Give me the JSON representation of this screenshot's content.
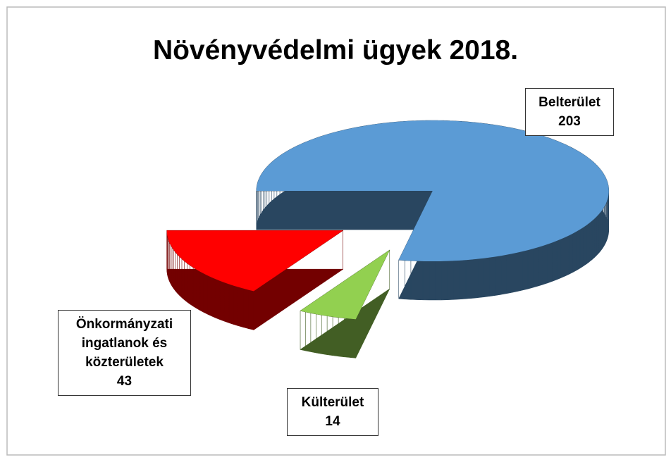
{
  "chart_data": {
    "type": "pie3d",
    "title": "Növényvédelmi ügyek 2018.",
    "categories": [
      "Belterület",
      "Külterület",
      "Önkormányzati ingatlanok és közterületek"
    ],
    "values": [
      203,
      14,
      43
    ],
    "colors": [
      "#5b9bd5",
      "#92d050",
      "#ff0000"
    ]
  }
}
